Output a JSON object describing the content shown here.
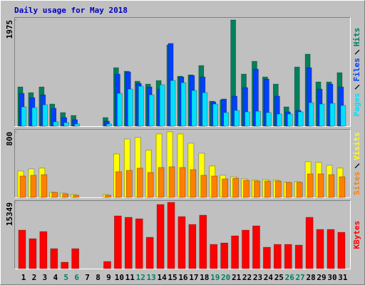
{
  "chart_data": [
    {
      "type": "bar",
      "title": "Daily usage for May 2018",
      "ylim": [
        0,
        1975
      ],
      "yticks": [
        1975
      ],
      "series": [
        {
          "name": "Hits",
          "color": "#00805c",
          "values": [
            729,
            623,
            729,
            411,
            252,
            199,
            0,
            0,
            159,
            1087,
            1021,
            835,
            782,
            848,
            1511,
            928,
            954,
            1127,
            464,
            490,
            1975,
            968,
            1206,
            915,
            782,
            358,
            1100,
            1339,
            822,
            822,
            994
          ]
        },
        {
          "name": "Files",
          "color": "#0040ff",
          "values": [
            610,
            530,
            583,
            331,
            159,
            119,
            0,
            0,
            93,
            968,
            1007,
            795,
            729,
            689,
            1538,
            915,
            941,
            915,
            451,
            504,
            557,
            716,
            1060,
            875,
            557,
            265,
            292,
            1087,
            689,
            782,
            729
          ]
        },
        {
          "name": "Pages",
          "color": "#00e0ff",
          "values": [
            358,
            345,
            398,
            80,
            66,
            40,
            0,
            0,
            40,
            610,
            689,
            742,
            583,
            769,
            848,
            809,
            663,
            623,
            411,
            252,
            292,
            265,
            278,
            252,
            225,
            225,
            265,
            437,
            411,
            424,
            384
          ]
        }
      ]
    },
    {
      "type": "bar",
      "ylim": [
        0,
        800
      ],
      "yticks": [
        800
      ],
      "series": [
        {
          "name": "Visits",
          "color": "#ffff00",
          "values": [
            322,
            348,
            357,
            61,
            52,
            35,
            0,
            0,
            35,
            530,
            713,
            730,
            574,
            774,
            800,
            774,
            661,
            539,
            383,
            270,
            252,
            226,
            209,
            217,
            209,
            183,
            191,
            435,
            426,
            391,
            357
          ]
        },
        {
          "name": "Sites",
          "color": "#ff8000",
          "values": [
            261,
            270,
            278,
            61,
            43,
            26,
            0,
            0,
            26,
            313,
            330,
            357,
            304,
            365,
            374,
            365,
            339,
            270,
            261,
            226,
            235,
            209,
            200,
            200,
            200,
            183,
            183,
            287,
            287,
            278,
            252
          ]
        }
      ]
    },
    {
      "type": "bar",
      "ylim": [
        0,
        15349
      ],
      "yticks": [
        15349
      ],
      "categories": [
        "1",
        "2",
        "3",
        "4",
        "5",
        "6",
        "7",
        "8",
        "9",
        "10",
        "11",
        "12",
        "13",
        "14",
        "15",
        "16",
        "17",
        "18",
        "19",
        "20",
        "21",
        "22",
        "23",
        "24",
        "25",
        "26",
        "27",
        "28",
        "29",
        "30",
        "31"
      ],
      "category_colors": [
        "#000",
        "#000",
        "#000",
        "#000",
        "#008060",
        "#008060",
        "#000",
        "#000",
        "#000",
        "#000",
        "#000",
        "#008060",
        "#008060",
        "#000",
        "#000",
        "#000",
        "#000",
        "#000",
        "#008060",
        "#008060",
        "#000",
        "#000",
        "#000",
        "#000",
        "#000",
        "#008060",
        "#008060",
        "#000",
        "#000",
        "#000",
        "#000"
      ],
      "series": [
        {
          "name": "KBytes",
          "color": "#ff0000",
          "values": [
            8913,
            6932,
            8583,
            4621,
            1485,
            4621,
            0,
            0,
            1650,
            12214,
            11884,
            11554,
            7262,
            14854,
            15349,
            12049,
            10233,
            12379,
            5612,
            5942,
            7592,
            8913,
            9903,
            4952,
            5612,
            5612,
            5447,
            11884,
            9078,
            9078,
            8418
          ]
        }
      ]
    }
  ]
}
